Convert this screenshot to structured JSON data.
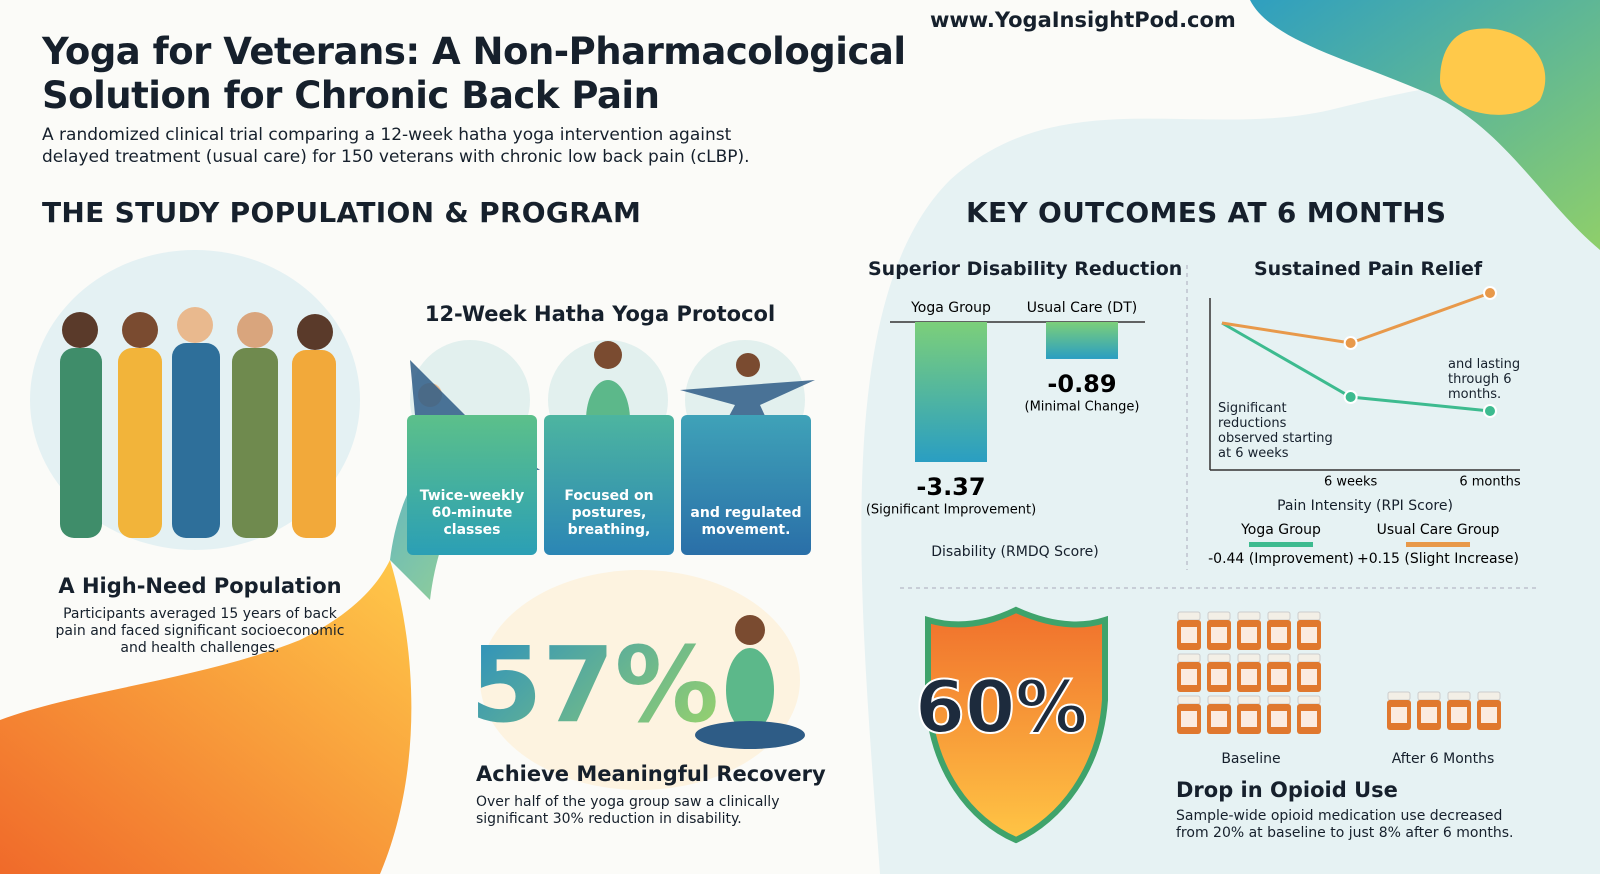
{
  "header": {
    "url": "www.YogaInsightPod.com",
    "title": "Yoga for Veterans: A Non-Pharmacological Solution for Chronic Back Pain",
    "subtitle": "A randomized clinical trial comparing a 12-week hatha yoga intervention against delayed treatment (usual care) for 150 veterans with chronic low back pain (cLBP)."
  },
  "study": {
    "heading": "THE STUDY POPULATION & PROGRAM",
    "population": {
      "title": "A High-Need Population",
      "text": "Participants averaged 15 years of back pain and faced significant socioeconomic and health challenges."
    },
    "protocol": {
      "title": "12-Week Hatha Yoga Protocol",
      "cards": [
        "Twice-weekly 60-minute classes",
        "Focused on postures, breathing,",
        "and regulated movement."
      ]
    },
    "recovery": {
      "stat": "57%",
      "title": "Achieve Meaningful Recovery",
      "text": "Over half of the yoga group saw a clinically significant 30% reduction in disability."
    }
  },
  "outcomes": {
    "heading": "KEY OUTCOMES AT 6 MONTHS",
    "disability": {
      "type": "bar",
      "title": "Superior Disability Reduction",
      "categories": [
        "Yoga Group",
        "Usual Care (DT)"
      ],
      "values": [
        -3.37,
        -0.89
      ],
      "notes": [
        "(Significant Improvement)",
        "(Minimal Change)"
      ],
      "xlabel": "Disability (RMDQ Score)",
      "color": "#3cb39a"
    },
    "pain": {
      "type": "line",
      "title": "Sustained Pain Relief",
      "x": [
        null,
        "6 weeks",
        "6 months"
      ],
      "series": [
        {
          "name": "Yoga Group",
          "color": "#3dbb8f",
          "values": [
            0,
            -0.37,
            -0.44
          ],
          "label": "-0.44 (Improvement)"
        },
        {
          "name": "Usual Care Group",
          "color": "#e8994a",
          "values": [
            0,
            -0.1,
            0.15
          ],
          "label": "+0.15 (Slight Increase)"
        }
      ],
      "xlabel": "Pain Intensity (RPI Score)",
      "annotations": [
        "Significant reductions observed starting at 6 weeks",
        "and lasting through 6 months."
      ]
    },
    "opioid": {
      "stat": "60%",
      "title": "Drop in Opioid Use",
      "text": "Sample-wide opioid medication use decreased from 20% at baseline to just 8% after 6 months.",
      "labels": [
        "Baseline",
        "After 6 Months"
      ]
    }
  }
}
